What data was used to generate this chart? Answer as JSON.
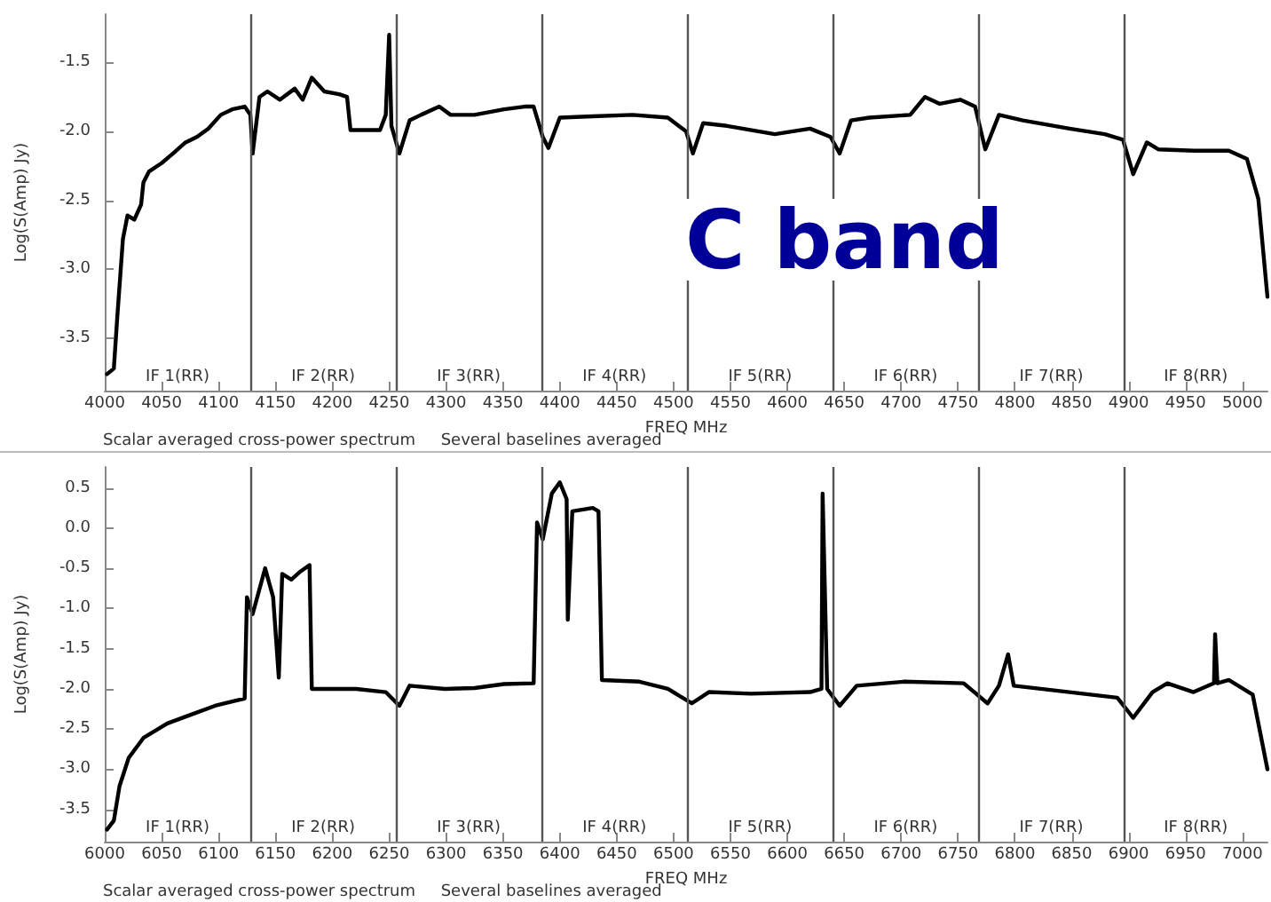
{
  "chart_data": [
    {
      "type": "line",
      "title": "C band",
      "xlabel": "FREQ MHz",
      "ylabel": "Log(S(Amp) Jy)",
      "grid": false,
      "marker": "none",
      "line_style": "solid",
      "xlim": [
        4000,
        5022
      ],
      "ylim": [
        -3.88,
        -1.15
      ],
      "xticks": [
        4000,
        4050,
        4100,
        4150,
        4200,
        4250,
        4300,
        4350,
        4400,
        4450,
        4500,
        4550,
        4600,
        4650,
        4700,
        4750,
        4800,
        4850,
        4900,
        4950,
        5000
      ],
      "yticks": [
        {
          "value": -3.5,
          "label": "-3.5"
        },
        {
          "value": -3,
          "label": "-3.0"
        },
        {
          "value": -2.5,
          "label": "-2.5"
        },
        {
          "value": -2,
          "label": "-2.0"
        },
        {
          "value": -1.5,
          "label": "-1.5"
        }
      ],
      "series": [
        {
          "color": "#000000",
          "x": [
            4002,
            4008,
            4011,
            4016,
            4020,
            4026,
            4032,
            4034,
            4039,
            4050,
            4060,
            4071,
            4081,
            4091,
            4102,
            4112,
            4123,
            4128,
            4130,
            4136,
            4143,
            4154,
            4167,
            4174,
            4182,
            4193,
            4206,
            4213,
            4216,
            4242,
            4247,
            4250,
            4252,
            4259,
            4268,
            4278,
            4294,
            4304,
            4325,
            4351,
            4369,
            4377,
            4385,
            4390,
            4400,
            4429,
            4464,
            4495,
            4511,
            4517,
            4526,
            4547,
            4589,
            4620,
            4638,
            4646,
            4656,
            4672,
            4708,
            4721,
            4734,
            4752,
            4765,
            4774,
            4786,
            4807,
            4848,
            4879,
            4895,
            4904,
            4916,
            4926,
            4957,
            4988,
            5004,
            5014,
            5022
          ],
          "values": [
            -3.76,
            -3.72,
            -3.35,
            -2.78,
            -2.61,
            -2.64,
            -2.53,
            -2.37,
            -2.29,
            -2.23,
            -2.16,
            -2.08,
            -2.04,
            -1.98,
            -1.88,
            -1.84,
            -1.82,
            -1.88,
            -2.16,
            -1.75,
            -1.71,
            -1.77,
            -1.69,
            -1.77,
            -1.61,
            -1.71,
            -1.73,
            -1.75,
            -1.99,
            -1.99,
            -1.88,
            -1.3,
            -1.96,
            -2.16,
            -1.92,
            -1.88,
            -1.82,
            -1.88,
            -1.88,
            -1.84,
            -1.82,
            -1.82,
            -2.04,
            -2.12,
            -1.9,
            -1.89,
            -1.88,
            -1.9,
            -2.0,
            -2.16,
            -1.94,
            -1.96,
            -2.02,
            -1.98,
            -2.04,
            -2.16,
            -1.92,
            -1.9,
            -1.88,
            -1.75,
            -1.8,
            -1.77,
            -1.82,
            -2.13,
            -1.88,
            -1.92,
            -1.98,
            -2.02,
            -2.06,
            -2.31,
            -2.08,
            -2.13,
            -2.14,
            -2.14,
            -2.2,
            -2.49,
            -3.2
          ]
        }
      ],
      "ref_lines": [
        {
          "axis": "x",
          "value": 4128
        },
        {
          "axis": "x",
          "value": 4256
        },
        {
          "axis": "x",
          "value": 4384
        },
        {
          "axis": "x",
          "value": 4512
        },
        {
          "axis": "x",
          "value": 4640
        },
        {
          "axis": "x",
          "value": 4768
        },
        {
          "axis": "x",
          "value": 4896
        }
      ],
      "annotations": [
        "IF 1(RR)",
        "IF 2(RR)",
        "IF 3(RR)",
        "IF 4(RR)",
        "IF 5(RR)",
        "IF 6(RR)",
        "IF 7(RR)",
        "IF 8(RR)",
        "Scalar averaged cross-power spectrum     Several baselines averaged"
      ]
    },
    {
      "type": "line",
      "xlabel": "FREQ MHz",
      "ylabel": "Log(S(Amp) Jy)",
      "grid": false,
      "marker": "none",
      "line_style": "solid",
      "xlim": [
        6000,
        7022
      ],
      "ylim": [
        -3.9,
        0.76
      ],
      "xticks": [
        6000,
        6050,
        6100,
        6150,
        6200,
        6250,
        6300,
        6350,
        6400,
        6450,
        6500,
        6550,
        6600,
        6650,
        6700,
        6750,
        6800,
        6850,
        6900,
        6950,
        7000
      ],
      "yticks": [
        {
          "value": -3.5,
          "label": "-3.5"
        },
        {
          "value": -3,
          "label": "-3.0"
        },
        {
          "value": -2.5,
          "label": "-2.5"
        },
        {
          "value": -2,
          "label": "-2.0"
        },
        {
          "value": -1.5,
          "label": "-1.5"
        },
        {
          "value": -1,
          "label": "-1.0"
        },
        {
          "value": -0.5,
          "label": "-0.5"
        },
        {
          "value": 0,
          "label": "0.0"
        },
        {
          "value": 0.5,
          "label": "0.5"
        }
      ],
      "series": [
        {
          "color": "#000000",
          "x": [
            6002,
            6008,
            6013,
            6021,
            6034,
            6055,
            6076,
            6097,
            6117,
            6123,
            6125,
            6130,
            6141,
            6148,
            6153,
            6156,
            6164,
            6172,
            6180,
            6182,
            6221,
            6247,
            6259,
            6268,
            6299,
            6325,
            6351,
            6377,
            6380,
            6385,
            6393,
            6400,
            6406,
            6407,
            6411,
            6429,
            6434,
            6437,
            6470,
            6495,
            6516,
            6531,
            6568,
            6620,
            6630,
            6631,
            6635,
            6646,
            6661,
            6703,
            6755,
            6776,
            6786,
            6794,
            6799,
            6848,
            6890,
            6904,
            6921,
            6934,
            6957,
            6975,
            6976,
            6978,
            6988,
            7009,
            7022
          ],
          "values": [
            -3.75,
            -3.64,
            -3.21,
            -2.86,
            -2.61,
            -2.43,
            -2.32,
            -2.21,
            -2.14,
            -2.12,
            -0.86,
            -1.07,
            -0.5,
            -0.86,
            -1.86,
            -0.57,
            -0.64,
            -0.54,
            -0.46,
            -2.0,
            -2.0,
            -2.04,
            -2.21,
            -1.96,
            -2.0,
            -1.99,
            -1.94,
            -1.93,
            0.07,
            -0.14,
            0.43,
            0.57,
            0.36,
            -1.14,
            0.21,
            0.25,
            0.21,
            -1.89,
            -1.91,
            -2.0,
            -2.18,
            -2.04,
            -2.06,
            -2.04,
            -2.0,
            0.43,
            -2.0,
            -2.21,
            -1.96,
            -1.91,
            -1.93,
            -2.18,
            -1.96,
            -1.57,
            -1.96,
            -2.04,
            -2.11,
            -2.36,
            -2.04,
            -1.93,
            -2.04,
            -1.93,
            -1.32,
            -1.93,
            -1.89,
            -2.07,
            -3.0
          ]
        }
      ],
      "ref_lines": [
        {
          "axis": "x",
          "value": 6128
        },
        {
          "axis": "x",
          "value": 6256
        },
        {
          "axis": "x",
          "value": 6384
        },
        {
          "axis": "x",
          "value": 6512
        },
        {
          "axis": "x",
          "value": 6640
        },
        {
          "axis": "x",
          "value": 6768
        },
        {
          "axis": "x",
          "value": 6896
        }
      ],
      "annotations": [
        "IF 1(RR)",
        "IF 2(RR)",
        "IF 3(RR)",
        "IF 4(RR)",
        "IF 5(RR)",
        "IF 6(RR)",
        "IF 7(RR)",
        "IF 8(RR)",
        "Scalar averaged cross-power spectrum     Several baselines averaged"
      ]
    }
  ]
}
